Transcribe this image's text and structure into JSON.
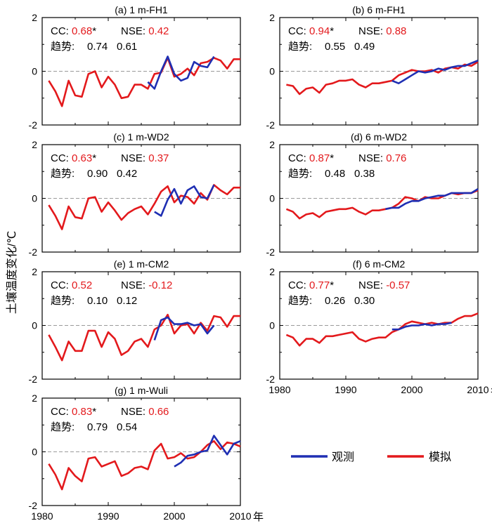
{
  "ylabel": "土壤温度变化/℃",
  "xtick_suffix": "年",
  "colors": {
    "obs": "#1f2fb3",
    "sim": "#e3191c",
    "zero": "#9a9a9a"
  },
  "legend": [
    {
      "key": "obs",
      "label": "观测"
    },
    {
      "key": "sim",
      "label": "模拟"
    }
  ],
  "panels": [
    {
      "title": "(a) 1 m-FH1",
      "cc_label": "CC:",
      "cc": "0.68",
      "cc_star": "*",
      "cc_color": "sim",
      "nse_label": "NSE:",
      "nse": "0.42",
      "trend_label": "趋势:",
      "trend_obs": "0.74",
      "trend_sim": "0.61"
    },
    {
      "title": "(b) 6 m-FH1",
      "cc_label": "CC:",
      "cc": "0.94",
      "cc_star": "*",
      "cc_color": "sim",
      "nse_label": "NSE:",
      "nse": "0.88",
      "trend_label": "趋势:",
      "trend_obs": "0.55",
      "trend_sim": "0.49"
    },
    {
      "title": "(c) 1 m-WD2",
      "cc_label": "CC:",
      "cc": "0.63",
      "cc_star": "*",
      "cc_color": "sim",
      "nse_label": "NSE:",
      "nse": "0.37",
      "trend_label": "趋势:",
      "trend_obs": "0.90",
      "trend_sim": "0.42"
    },
    {
      "title": "(d) 6 m-WD2",
      "cc_label": "CC:",
      "cc": "0.87",
      "cc_star": "*",
      "cc_color": "sim",
      "nse_label": "NSE:",
      "nse": "0.76",
      "trend_label": "趋势:",
      "trend_obs": "0.48",
      "trend_sim": "0.38"
    },
    {
      "title": "(e) 1 m-CM2",
      "cc_label": "CC:",
      "cc": "0.52",
      "cc_star": "",
      "cc_color": "sim",
      "nse_label": "NSE:",
      "nse": "-0.12",
      "trend_label": "趋势:",
      "trend_obs": "0.10",
      "trend_sim": "0.12"
    },
    {
      "title": "(f) 6 m-CM2",
      "cc_label": "CC:",
      "cc": "0.77",
      "cc_star": "*",
      "cc_color": "sim",
      "nse_label": "NSE:",
      "nse": "-0.57",
      "trend_label": "趋势:",
      "trend_obs": "0.26",
      "trend_sim": "0.30"
    },
    {
      "title": "(g) 1 m-Wuli",
      "cc_label": "CC:",
      "cc": "0.83",
      "cc_star": "*",
      "cc_color": "sim",
      "nse_label": "NSE:",
      "nse": "0.66",
      "trend_label": "趋势:",
      "trend_obs": "0.79",
      "trend_sim": "0.54"
    }
  ],
  "chart_data": {
    "type": "line",
    "x_range": [
      1980,
      2010
    ],
    "y_range": [
      -2,
      2
    ],
    "x_ticks": [
      1980,
      1990,
      2000,
      2010
    ],
    "y_ticks": [
      -2,
      0,
      2
    ],
    "zero_line": true,
    "sim_years": [
      1981,
      1982,
      1983,
      1984,
      1985,
      1986,
      1987,
      1988,
      1989,
      1990,
      1991,
      1992,
      1993,
      1994,
      1995,
      1996,
      1997,
      1998,
      1999,
      2000,
      2001,
      2002,
      2003,
      2004,
      2005,
      2006,
      2007,
      2008,
      2009,
      2010
    ],
    "panels": [
      {
        "title": "(a) 1 m-FH1",
        "sim": [
          -0.35,
          -0.75,
          -1.3,
          -0.35,
          -0.9,
          -0.95,
          -0.1,
          0.0,
          -0.6,
          -0.2,
          -0.5,
          -1.0,
          -0.95,
          -0.5,
          -0.5,
          -0.65,
          -0.1,
          -0.05,
          0.5,
          -0.2,
          -0.1,
          0.1,
          -0.15,
          0.3,
          0.35,
          0.5,
          0.4,
          0.1,
          0.45,
          0.45
        ],
        "obs_years": [
          1996,
          1997,
          1998,
          1999,
          2000,
          2001,
          2002,
          2003,
          2004,
          2005,
          2006
        ],
        "obs": [
          -0.4,
          -0.65,
          0.0,
          0.55,
          -0.1,
          -0.35,
          -0.25,
          0.35,
          0.2,
          0.15,
          0.55
        ]
      },
      {
        "title": "(b) 6 m-FH1",
        "sim": [
          -0.5,
          -0.55,
          -0.85,
          -0.65,
          -0.6,
          -0.8,
          -0.5,
          -0.45,
          -0.35,
          -0.35,
          -0.3,
          -0.5,
          -0.6,
          -0.45,
          -0.45,
          -0.4,
          -0.35,
          -0.15,
          -0.05,
          0.05,
          0.0,
          0.0,
          0.05,
          -0.05,
          0.1,
          0.15,
          0.1,
          0.25,
          0.2,
          0.35
        ],
        "obs_years": [
          1997,
          1998,
          1999,
          2000,
          2001,
          2002,
          2003,
          2004,
          2005,
          2006,
          2007,
          2008,
          2009,
          2010
        ],
        "obs": [
          -0.35,
          -0.45,
          -0.3,
          -0.15,
          0.0,
          -0.05,
          0.0,
          0.1,
          0.05,
          0.15,
          0.2,
          0.2,
          0.3,
          0.4
        ]
      },
      {
        "title": "(c) 1 m-WD2",
        "sim": [
          -0.25,
          -0.65,
          -1.15,
          -0.3,
          -0.7,
          -0.75,
          0.0,
          0.05,
          -0.5,
          -0.15,
          -0.45,
          -0.8,
          -0.55,
          -0.4,
          -0.3,
          -0.6,
          -0.2,
          0.25,
          0.45,
          -0.15,
          0.1,
          0.05,
          -0.2,
          0.2,
          -0.05,
          0.5,
          0.3,
          0.15,
          0.4,
          0.4
        ],
        "obs_years": [
          1997,
          1998,
          1999,
          2000,
          2001,
          2002,
          2003,
          2004,
          2005,
          2006
        ],
        "obs": [
          -0.5,
          -0.65,
          -0.05,
          0.35,
          -0.2,
          0.3,
          0.45,
          0.05,
          0.0,
          0.5
        ]
      },
      {
        "title": "(d) 6 m-WD2",
        "sim": [
          -0.4,
          -0.5,
          -0.75,
          -0.6,
          -0.55,
          -0.7,
          -0.5,
          -0.45,
          -0.4,
          -0.4,
          -0.35,
          -0.5,
          -0.6,
          -0.45,
          -0.45,
          -0.4,
          -0.35,
          -0.2,
          0.05,
          0.0,
          -0.1,
          0.05,
          0.0,
          0.0,
          0.1,
          0.2,
          0.15,
          0.2,
          0.2,
          0.3
        ],
        "obs_years": [
          1996,
          1997,
          1998,
          1999,
          2000,
          2001,
          2002,
          2003,
          2004,
          2005,
          2006,
          2007,
          2008,
          2009,
          2010
        ],
        "obs": [
          -0.4,
          -0.35,
          -0.35,
          -0.2,
          -0.1,
          -0.1,
          0.0,
          0.05,
          0.1,
          0.1,
          0.2,
          0.2,
          0.2,
          0.2,
          0.35
        ]
      },
      {
        "title": "(e) 1 m-CM2",
        "sim": [
          -0.35,
          -0.8,
          -1.3,
          -0.6,
          -0.95,
          -0.95,
          -0.2,
          -0.2,
          -0.8,
          -0.25,
          -0.5,
          -1.1,
          -0.95,
          -0.6,
          -0.5,
          -0.8,
          -0.15,
          0.0,
          0.4,
          -0.3,
          0.0,
          0.05,
          -0.3,
          0.1,
          -0.2,
          0.35,
          0.3,
          -0.05,
          0.35,
          0.35
        ],
        "obs_years": [
          1997,
          1998,
          1999,
          2000,
          2001,
          2002,
          2003,
          2004,
          2005,
          2006
        ],
        "obs": [
          -0.55,
          0.2,
          0.3,
          0.05,
          0.05,
          0.1,
          0.0,
          0.05,
          -0.3,
          0.0
        ]
      },
      {
        "title": "(f) 6 m-CM2",
        "sim": [
          -0.35,
          -0.45,
          -0.75,
          -0.5,
          -0.5,
          -0.65,
          -0.4,
          -0.4,
          -0.35,
          -0.3,
          -0.25,
          -0.5,
          -0.6,
          -0.5,
          -0.45,
          -0.45,
          -0.25,
          -0.15,
          0.05,
          0.15,
          0.1,
          0.05,
          0.1,
          0.05,
          0.1,
          0.1,
          0.25,
          0.35,
          0.35,
          0.45
        ],
        "obs_years": [
          1997,
          1998,
          1999,
          2000,
          2001,
          2002,
          2003,
          2004,
          2005,
          2006
        ],
        "obs": [
          -0.15,
          -0.15,
          -0.05,
          0.0,
          0.0,
          0.05,
          0.0,
          0.05,
          0.05,
          0.1
        ]
      },
      {
        "title": "(g) 1 m-Wuli",
        "sim": [
          -0.45,
          -0.85,
          -1.4,
          -0.6,
          -0.9,
          -1.1,
          -0.25,
          -0.2,
          -0.55,
          -0.45,
          -0.35,
          -0.9,
          -0.8,
          -0.6,
          -0.55,
          -0.65,
          0.05,
          0.3,
          -0.25,
          -0.2,
          -0.05,
          -0.25,
          -0.2,
          0.0,
          0.25,
          0.4,
          0.1,
          0.35,
          0.3,
          0.2
        ],
        "obs_years": [
          2000,
          2001,
          2002,
          2003,
          2004,
          2005,
          2006,
          2007,
          2008,
          2009,
          2010
        ],
        "obs": [
          -0.55,
          -0.4,
          -0.15,
          -0.1,
          0.0,
          0.05,
          0.6,
          0.25,
          -0.1,
          0.3,
          0.4
        ]
      }
    ]
  }
}
